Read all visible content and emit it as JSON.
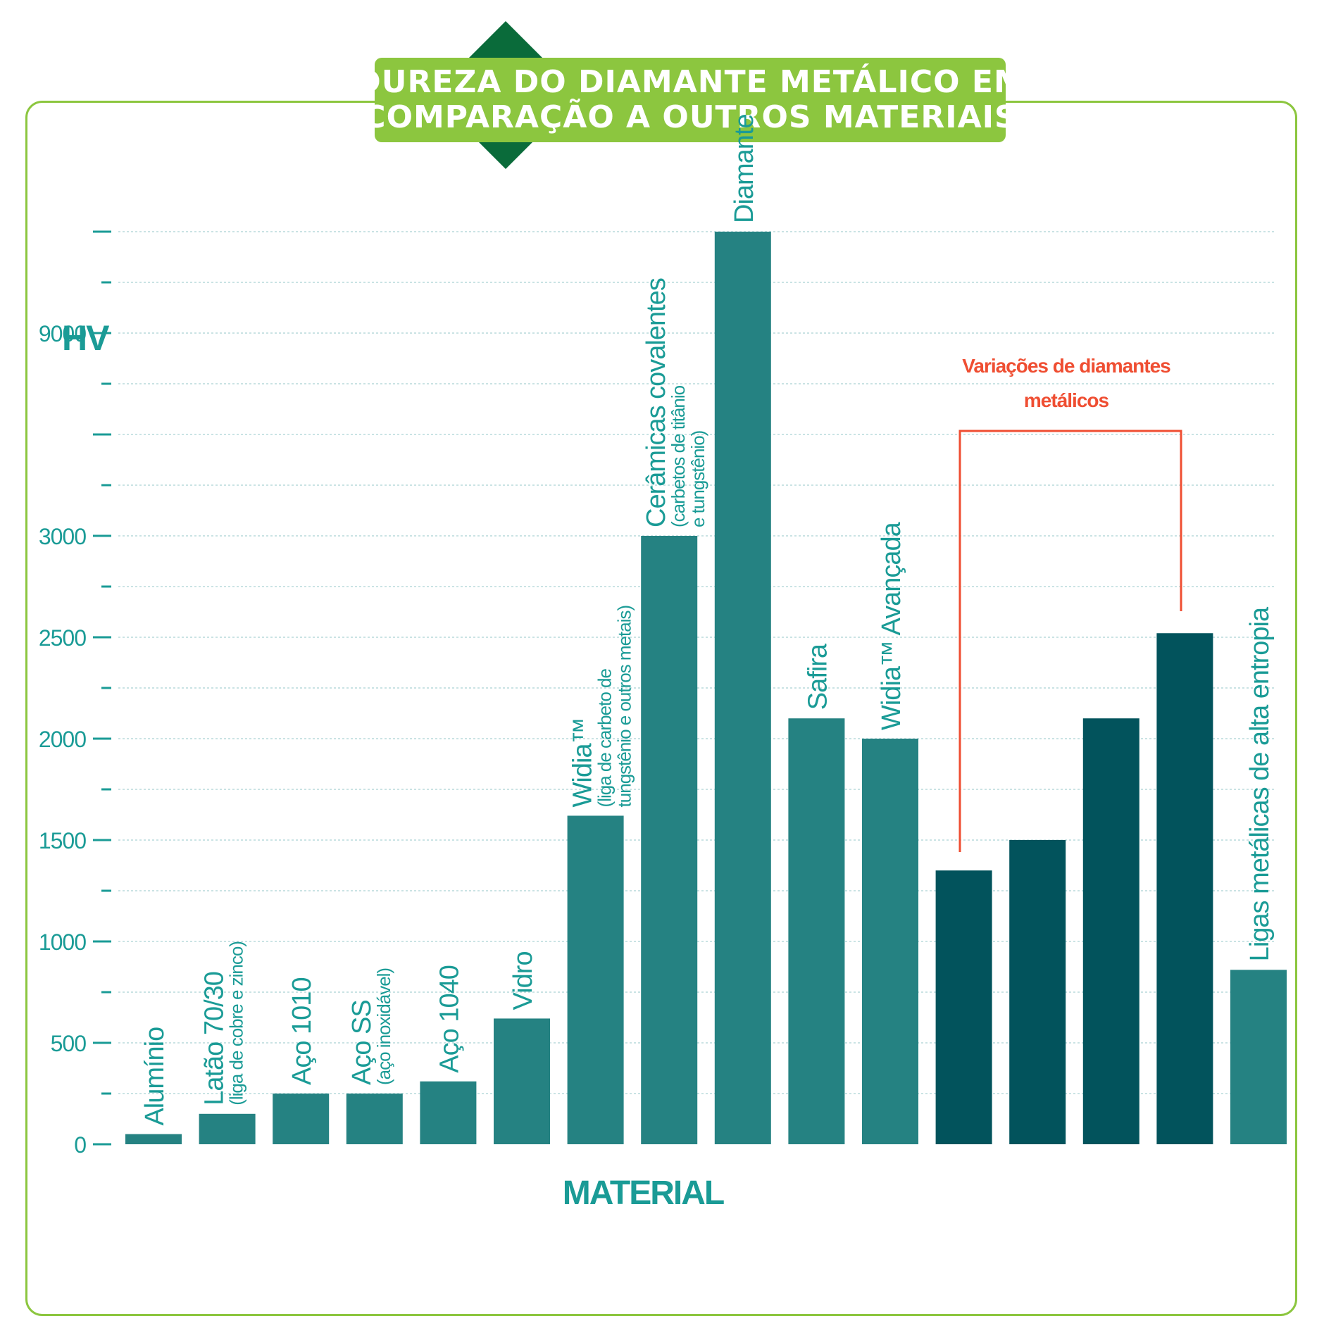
{
  "title_lines": [
    "DUREZA DO DIAMANTE METÁLICO EM",
    "COMPARAÇÃO A OUTROS MATERIAIS"
  ],
  "colors": {
    "frame": "#8cc63f",
    "diamond": "#0a6b3a",
    "bar_material": "#258282",
    "bar_metallic_diamond": "#02535c",
    "axis_text": "#1a9b96",
    "grid": "#b9dadb",
    "annotation": "#ef4e32"
  },
  "chart_data": {
    "type": "bar",
    "ylabel": "HV",
    "xlabel": "MATERIAL",
    "y_ticks": [
      "0",
      "500",
      "1000",
      "1500",
      "2000",
      "2500",
      "3000",
      "9000"
    ],
    "y_scale_note": "broken axis: ticks 0–3000 step 500, then 9000",
    "bars": [
      {
        "label": "Alumínio",
        "sublabel": "",
        "value": 50,
        "group": "material"
      },
      {
        "label": "Latão 70/30",
        "sublabel": "(liga de cobre e zinco)",
        "value": 150,
        "group": "material"
      },
      {
        "label": "Aço 1010",
        "sublabel": "",
        "value": 250,
        "group": "material"
      },
      {
        "label": "Aço SS",
        "sublabel": "(aço inoxidável)",
        "value": 250,
        "group": "material"
      },
      {
        "label": "Aço 1040",
        "sublabel": "",
        "value": 310,
        "group": "material"
      },
      {
        "label": "Vidro",
        "sublabel": "",
        "value": 620,
        "group": "material"
      },
      {
        "label": "Widia™",
        "sublabel": "(liga de carbeto de tungstênio e outros metais)",
        "value": 1620,
        "group": "material"
      },
      {
        "label": "Cerâmicas covalentes",
        "sublabel": "(carbetos de titânio e tungstênio)",
        "value": 3000,
        "group": "material"
      },
      {
        "label": "Diamante",
        "sublabel": "",
        "value": 10000,
        "group": "material"
      },
      {
        "label": "Safira",
        "sublabel": "",
        "value": 2100,
        "group": "material"
      },
      {
        "label": "Widia™ Avançada",
        "sublabel": "",
        "value": 2000,
        "group": "material"
      },
      {
        "label": "",
        "sublabel": "",
        "value": 1350,
        "group": "metallic_diamond"
      },
      {
        "label": "",
        "sublabel": "",
        "value": 1500,
        "group": "metallic_diamond"
      },
      {
        "label": "",
        "sublabel": "",
        "value": 2100,
        "group": "metallic_diamond"
      },
      {
        "label": "",
        "sublabel": "",
        "value": 2520,
        "group": "metallic_diamond"
      },
      {
        "label": "Ligas metálicas de alta entropia",
        "sublabel": "",
        "value": 860,
        "group": "material"
      }
    ],
    "annotation": {
      "text_lines": [
        "Variações de diamantes",
        "metálicos"
      ],
      "spans_bars": [
        11,
        14
      ]
    }
  }
}
